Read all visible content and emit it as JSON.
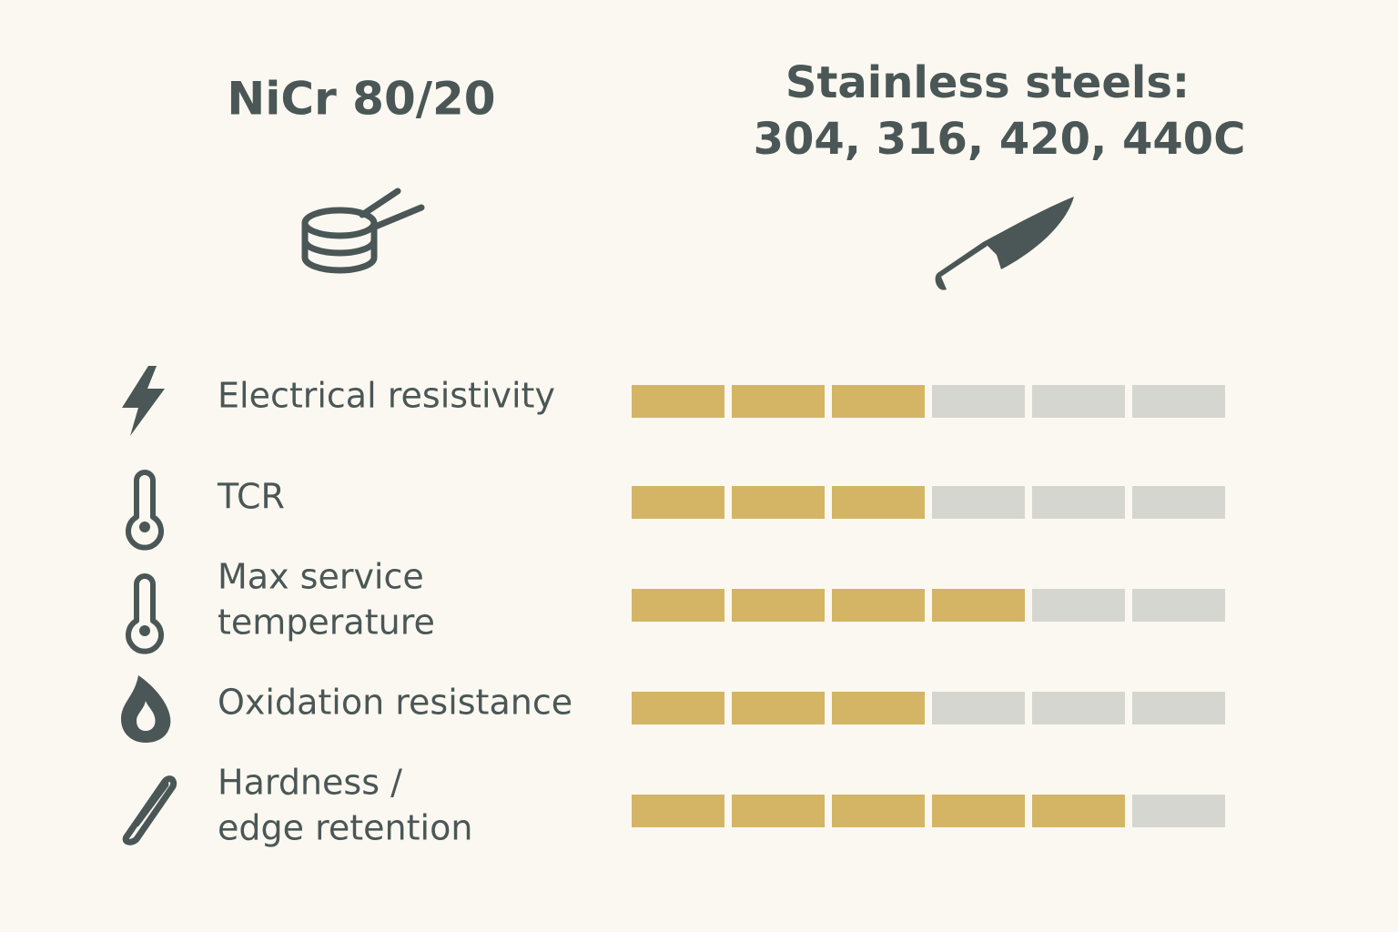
{
  "header": {
    "left_title": "NiCr 80/20",
    "right_title_lines": [
      "Stainless steels:",
      "304, 316, 420, 440C"
    ]
  },
  "scale": {
    "segments": 6
  },
  "rows": [
    {
      "label_lines": [
        "Electrical resistivity"
      ],
      "rating": 3
    },
    {
      "label_lines": [
        "TCR"
      ],
      "rating": 3
    },
    {
      "label_lines": [
        "Max service",
        "temperature"
      ],
      "rating": 4
    },
    {
      "label_lines": [
        "Oxidation resistance"
      ],
      "rating": 3
    },
    {
      "label_lines": [
        "Hardness /",
        "edge retention"
      ],
      "rating": 5
    }
  ]
}
